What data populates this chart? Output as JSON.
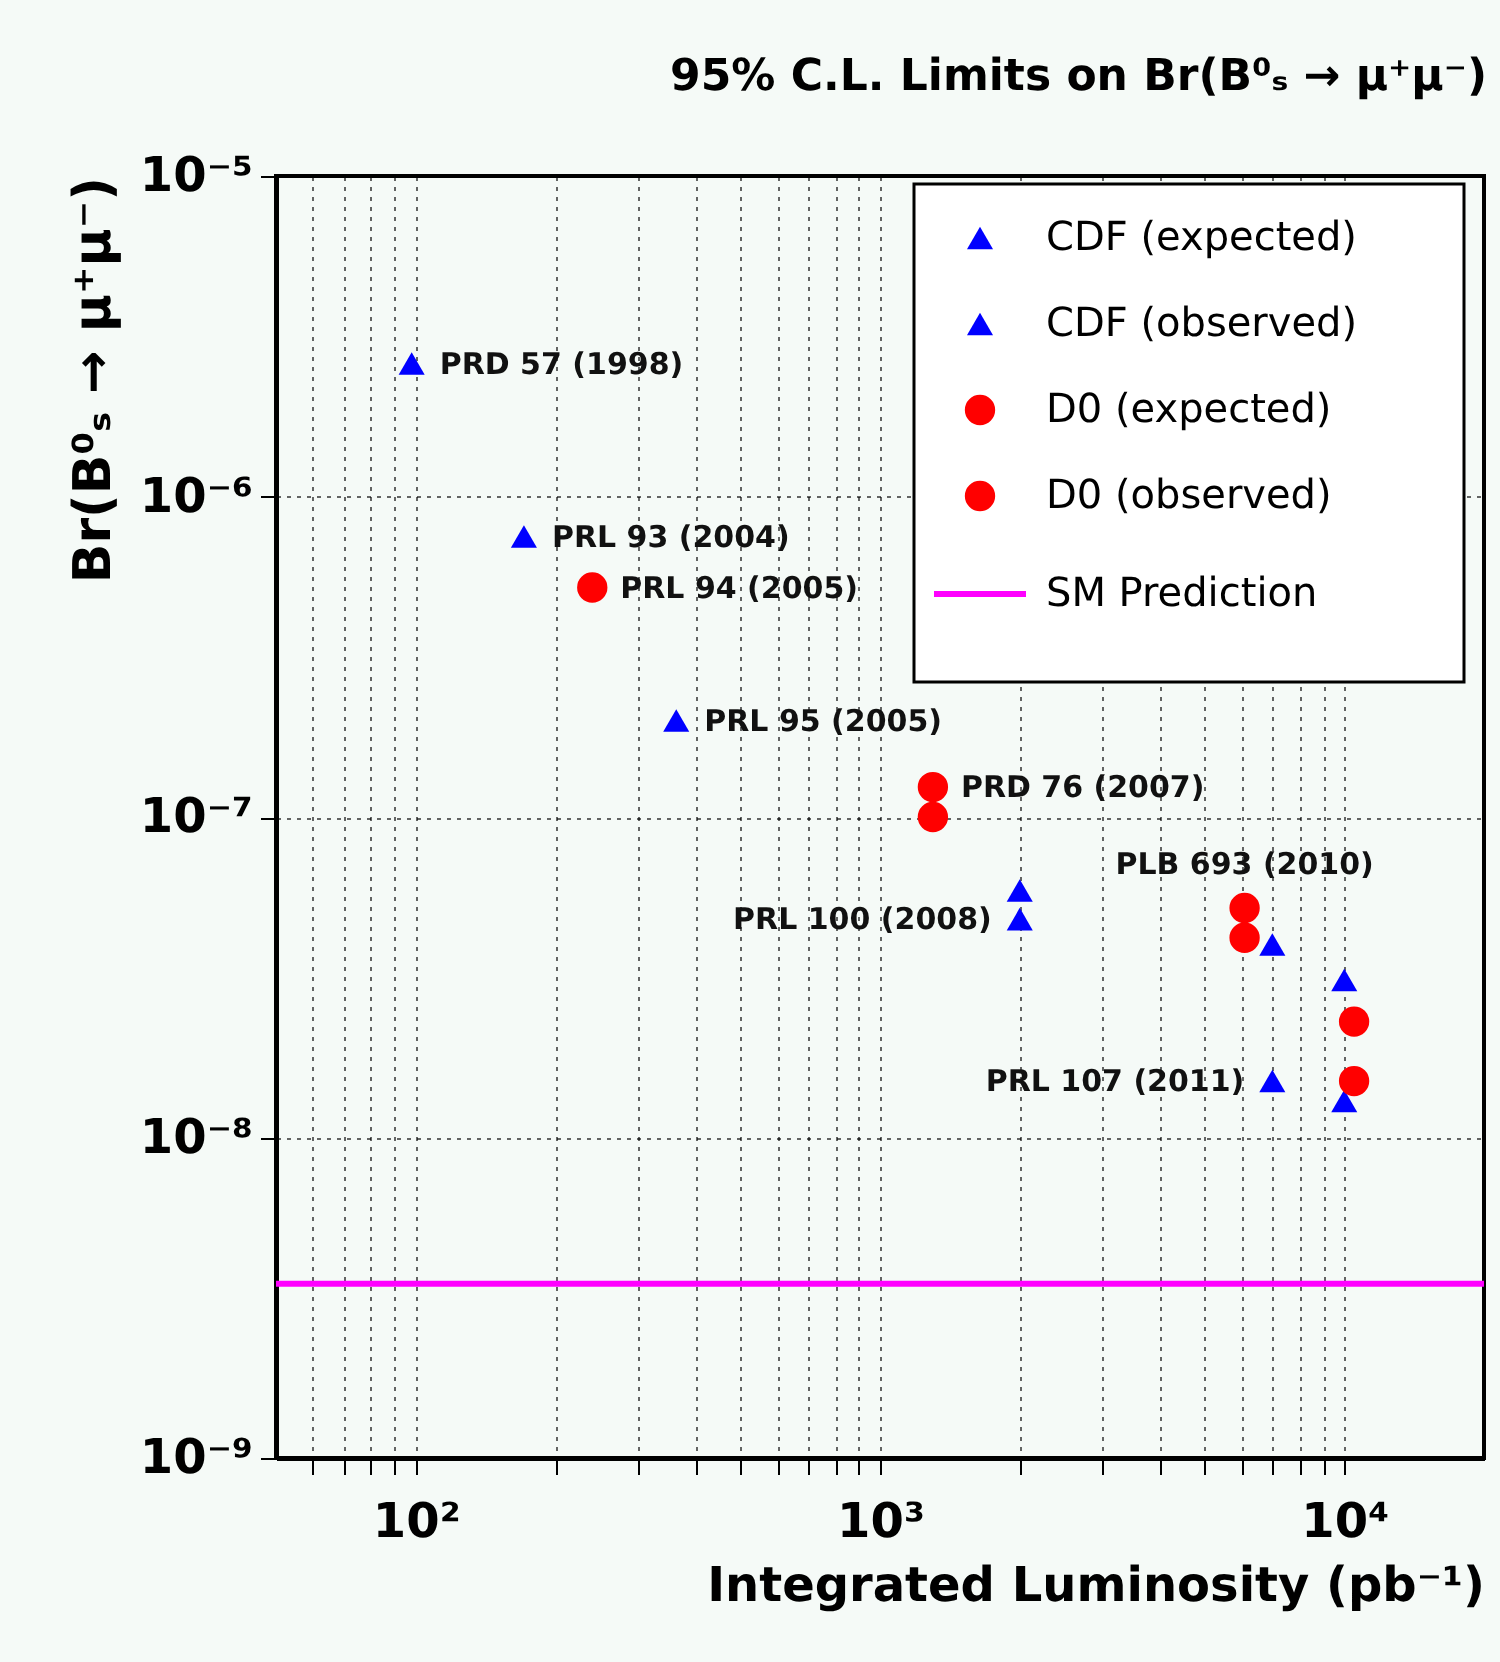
{
  "chart_data": {
    "type": "scatter",
    "title": "95% C.L. Limits on Br(B⁰ₛ → μ⁺μ⁻)",
    "xlabel": "Integrated Luminosity (pb⁻¹)",
    "ylabel": "Br(B⁰ₛ → μ⁺μ⁻)",
    "log": "xy",
    "xlim": [
      50,
      20000
    ],
    "ylim": [
      1e-09,
      1e-05
    ],
    "xticks": [
      {
        "value": 60,
        "label": null
      },
      {
        "value": 70,
        "label": null
      },
      {
        "value": 80,
        "label": null
      },
      {
        "value": 90,
        "label": null
      },
      {
        "value": 100,
        "label": "10²"
      },
      {
        "value": 200,
        "label": null
      },
      {
        "value": 300,
        "label": null
      },
      {
        "value": 400,
        "label": null
      },
      {
        "value": 500,
        "label": null
      },
      {
        "value": 600,
        "label": null
      },
      {
        "value": 700,
        "label": null
      },
      {
        "value": 800,
        "label": null
      },
      {
        "value": 900,
        "label": null
      },
      {
        "value": 1000,
        "label": "10³"
      },
      {
        "value": 2000,
        "label": null
      },
      {
        "value": 3000,
        "label": null
      },
      {
        "value": 4000,
        "label": null
      },
      {
        "value": 5000,
        "label": null
      },
      {
        "value": 6000,
        "label": null
      },
      {
        "value": 7000,
        "label": null
      },
      {
        "value": 8000,
        "label": null
      },
      {
        "value": 9000,
        "label": null
      },
      {
        "value": 10000,
        "label": "10⁴"
      }
    ],
    "yticks": [
      {
        "value": 1e-09,
        "label": "10⁻⁹"
      },
      {
        "value": 1e-08,
        "label": "10⁻⁸"
      },
      {
        "value": 1e-07,
        "label": "10⁻⁷"
      },
      {
        "value": 1e-06,
        "label": "10⁻⁶"
      },
      {
        "value": 1e-05,
        "label": "10⁻⁵"
      }
    ],
    "grid": true,
    "legend": "top right",
    "series": [
      {
        "name": "CDF (expected)",
        "color": "#0000ff",
        "marker": "triangle",
        "x": [
          2000,
          7000,
          10000
        ],
        "values": [
          4.8e-08,
          1.5e-08,
          1.3e-08
        ]
      },
      {
        "name": "CDF (observed)",
        "color": "#0000ff",
        "marker": "triangle",
        "x": [
          98,
          171,
          364,
          2000,
          7000,
          10000
        ],
        "values": [
          2.6e-06,
          7.5e-07,
          2e-07,
          5.9e-08,
          4e-08,
          3.1e-08
        ]
      },
      {
        "name": "D0 (expected)",
        "color": "#ff0000",
        "marker": "circle",
        "x": [
          1300,
          6100,
          10500
        ],
        "values": [
          1e-07,
          4.2e-08,
          2.3e-08
        ]
      },
      {
        "name": "D0 (observed)",
        "color": "#ff0000",
        "marker": "circle",
        "x": [
          240,
          1300,
          6100,
          10500
        ],
        "values": [
          5.2e-07,
          1.24e-07,
          5.2e-08,
          1.5e-08
        ]
      }
    ],
    "ref_lines": [
      {
        "axis": "y",
        "value": 3.5e-09,
        "label": "SM Prediction",
        "color": "#ff00ff",
        "line_style": "solid"
      }
    ],
    "annotations": [
      {
        "text": "PRD 57 (1998)",
        "x": 98,
        "y": 2.6e-06
      },
      {
        "text": "PRL 93 (2004)",
        "x": 171,
        "y": 7.5e-07
      },
      {
        "text": "PRL 94 (2005)",
        "x": 240,
        "y": 5.2e-07
      },
      {
        "text": "PRL 95 (2005)",
        "x": 364,
        "y": 2e-07
      },
      {
        "text": "PRD 76 (2007)",
        "x": 1300,
        "y": 1.24e-07
      },
      {
        "text": "PRL 100 (2008)",
        "x": 2000,
        "y": 4.8e-08
      },
      {
        "text": "PLB 693 (2010)",
        "x": 6100,
        "y": 5.2e-08
      },
      {
        "text": "PRL 107 (2011)",
        "x": 7000,
        "y": 1.5e-08
      }
    ]
  }
}
